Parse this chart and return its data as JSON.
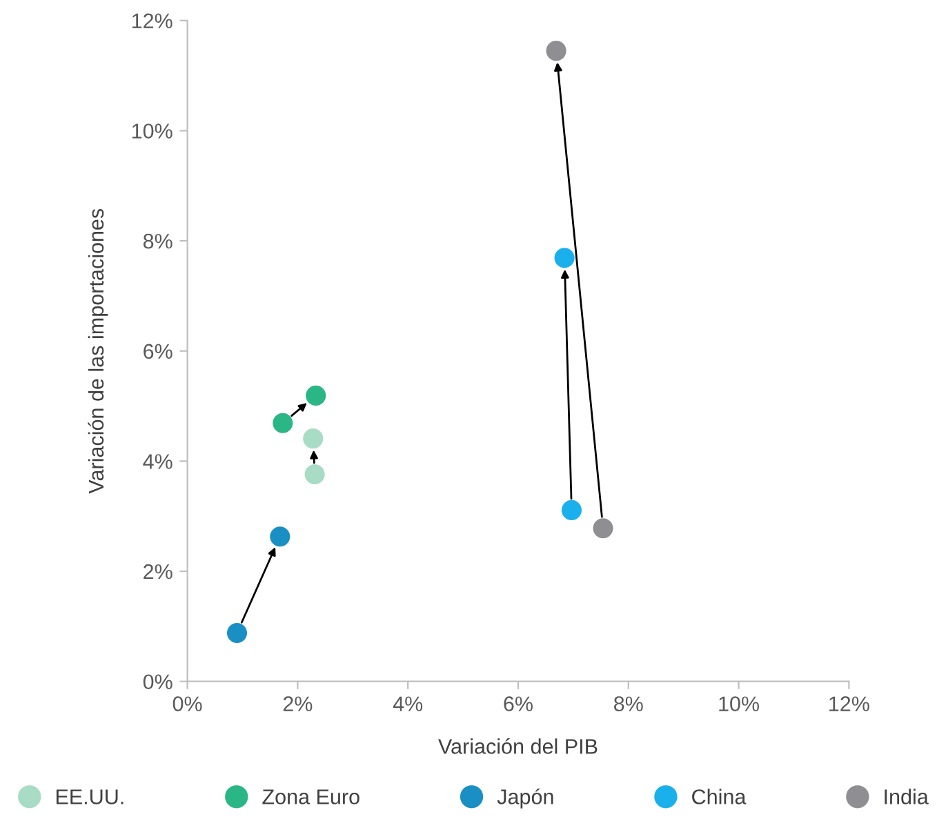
{
  "chart_data": {
    "type": "scatter",
    "xlabel": "Variación del PIB",
    "ylabel": "Variación de las importaciones",
    "xlim": [
      0,
      12
    ],
    "ylim": [
      0,
      12
    ],
    "xticks": [
      {
        "value": 0,
        "label": "0%"
      },
      {
        "value": 2,
        "label": "2%"
      },
      {
        "value": 4,
        "label": "4%"
      },
      {
        "value": 6,
        "label": "6%"
      },
      {
        "value": 8,
        "label": "8%"
      },
      {
        "value": 10,
        "label": "10%"
      },
      {
        "value": 12,
        "label": "12%"
      }
    ],
    "yticks": [
      {
        "value": 0,
        "label": "0%"
      },
      {
        "value": 2,
        "label": "2%"
      },
      {
        "value": 4,
        "label": "4%"
      },
      {
        "value": 6,
        "label": "6%"
      },
      {
        "value": 8,
        "label": "8%"
      },
      {
        "value": 10,
        "label": "10%"
      },
      {
        "value": 12,
        "label": "12%"
      }
    ],
    "grid": false,
    "legend": "bottom",
    "marker": "circle",
    "series": [
      {
        "name": "EE.UU.",
        "color": "#a8dcc4",
        "x": [
          2.31,
          2.28
        ],
        "values": [
          3.76,
          4.41
        ]
      },
      {
        "name": "Zona Euro",
        "color": "#2bb686",
        "x": [
          1.73,
          2.33
        ],
        "values": [
          4.69,
          5.19
        ]
      },
      {
        "name": "Japón",
        "color": "#1a8fc4",
        "x": [
          0.9,
          1.68
        ],
        "values": [
          0.88,
          2.63
        ]
      },
      {
        "name": "China",
        "color": "#1ab0ec",
        "x": [
          6.97,
          6.84
        ],
        "values": [
          3.11,
          7.69
        ]
      },
      {
        "name": "India",
        "color": "#8e8e93",
        "x": [
          7.54,
          6.69
        ],
        "values": [
          2.78,
          11.45
        ]
      }
    ]
  }
}
